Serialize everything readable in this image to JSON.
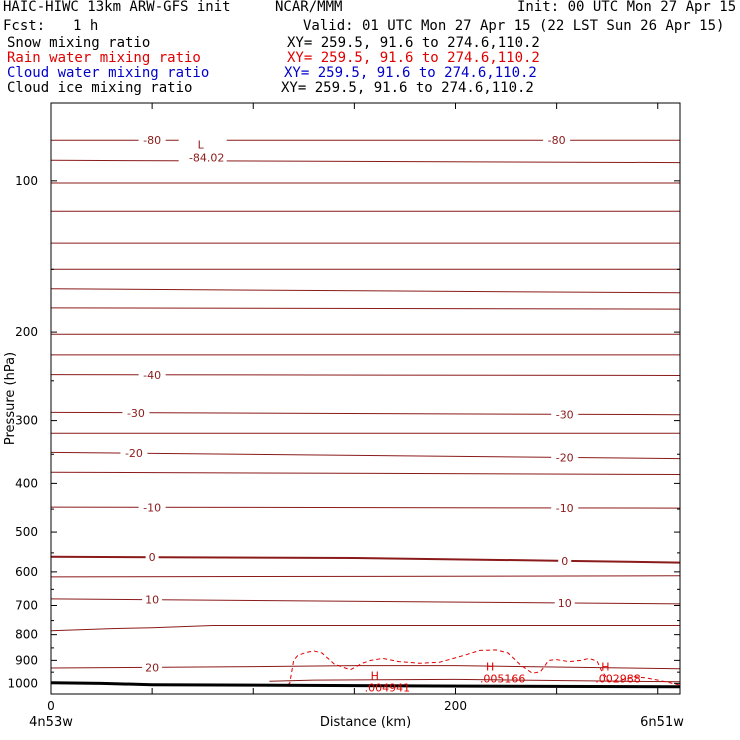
{
  "header": {
    "model": "HAIC-HIWC 13km ARW-GFS init",
    "center": "NCAR/MMM",
    "init": "Init: 00 UTC Mon 27 Apr 15",
    "fcst_label": "Fcst:",
    "fcst_value": "1 h",
    "valid": "Valid: 01 UTC Mon 27 Apr 15 (22 LST Sun 26 Apr 15)"
  },
  "fields": [
    {
      "name": "Snow mixing ratio",
      "xy": "XY= 259.5, 91.6 to 274.6,110.2",
      "color": "#000000"
    },
    {
      "name": "Rain water mixing ratio",
      "xy": "XY= 259.5, 91.6 to 274.6,110.2",
      "color": "#e00000"
    },
    {
      "name": "Cloud water mixing ratio",
      "xy": "XY= 259.5, 91.6 to 274.6,110.2",
      "color": "#0000cc"
    },
    {
      "name": "Cloud ice mixing ratio",
      "xy": "XY= 259.5, 91.6 to 274.6,110.2",
      "color": "#000000"
    }
  ],
  "chart_data": {
    "type": "line",
    "xlabel": "Distance (km)",
    "ylabel": "Pressure (hPa)",
    "xlim": [
      0,
      311
    ],
    "ylim": [
      70,
      1050
    ],
    "y_scale": "log",
    "x_ticks": [
      0,
      50,
      100,
      150,
      200,
      250,
      300
    ],
    "x_tick_labels": [
      {
        "x": 0,
        "label": "0"
      },
      {
        "x": 200,
        "label": "200"
      }
    ],
    "y_ticks": [
      100,
      200,
      300,
      400,
      500,
      600,
      700,
      800,
      900,
      1000
    ],
    "y_tick_labels": [
      "100",
      "200",
      "300",
      "400",
      "500",
      "600",
      "700",
      "800",
      "900",
      "1000"
    ],
    "endpoints": {
      "left": "4n53w",
      "right": "6n51w"
    },
    "colors": {
      "temperature": "#8b1a1a",
      "rain": "#e00000",
      "ground": "#000000",
      "frame": "#000000"
    },
    "temperature_contours": [
      {
        "label": "-80",
        "x": [
          0,
          311
        ],
        "p": [
          83,
          83
        ],
        "labels_at": [
          [
            50,
            -1
          ],
          [
            250,
            -1
          ]
        ]
      },
      {
        "label": "",
        "x": [
          0,
          311
        ],
        "p": [
          91,
          92
        ],
        "labels_at": []
      },
      {
        "label": "",
        "x": [
          0,
          311
        ],
        "p": [
          101,
          101
        ],
        "labels_at": []
      },
      {
        "label": "",
        "x": [
          0,
          311
        ],
        "p": [
          115,
          115
        ],
        "labels_at": []
      },
      {
        "label": "",
        "x": [
          0,
          311
        ],
        "p": [
          133,
          133
        ],
        "labels_at": []
      },
      {
        "label": "",
        "x": [
          0,
          311
        ],
        "p": [
          150,
          150
        ],
        "labels_at": []
      },
      {
        "label": "",
        "x": [
          0,
          311
        ],
        "p": [
          164,
          167
        ],
        "labels_at": []
      },
      {
        "label": "",
        "x": [
          0,
          311
        ],
        "p": [
          179,
          180
        ],
        "labels_at": []
      },
      {
        "label": "",
        "x": [
          0,
          311
        ],
        "p": [
          202,
          202
        ],
        "labels_at": []
      },
      {
        "label": "",
        "x": [
          0,
          311
        ],
        "p": [
          222,
          222
        ],
        "labels_at": []
      },
      {
        "label": "-40",
        "x": [
          0,
          311
        ],
        "p": [
          243,
          244
        ],
        "labels_at": [
          [
            50,
            -1
          ]
        ]
      },
      {
        "label": "-30",
        "x": [
          0,
          311
        ],
        "p": [
          289,
          292
        ],
        "labels_at": [
          [
            42,
            -1
          ],
          [
            254,
            -1
          ]
        ]
      },
      {
        "label": "",
        "x": [
          0,
          311
        ],
        "p": [
          318,
          318
        ],
        "labels_at": []
      },
      {
        "label": "-20",
        "x": [
          0,
          311
        ],
        "p": [
          347,
          357
        ],
        "labels_at": [
          [
            41,
            -1
          ],
          [
            254,
            -1
          ]
        ]
      },
      {
        "label": "",
        "x": [
          0,
          311
        ],
        "p": [
          380,
          384
        ],
        "labels_at": []
      },
      {
        "label": "-10",
        "x": [
          0,
          311
        ],
        "p": [
          446,
          448
        ],
        "labels_at": [
          [
            50,
            -1
          ],
          [
            254,
            -1
          ]
        ]
      },
      {
        "label": "0",
        "x": [
          0,
          150,
          250,
          311
        ],
        "p": [
          560,
          563,
          570,
          575
        ],
        "labels_at": [
          [
            50,
            -1
          ],
          [
            254,
            -1
          ]
        ],
        "bold": true
      },
      {
        "label": "",
        "x": [
          0,
          311
        ],
        "p": [
          614,
          611
        ],
        "labels_at": []
      },
      {
        "label": "10",
        "x": [
          0,
          311
        ],
        "p": [
          679,
          695
        ],
        "labels_at": [
          [
            50,
            -1
          ],
          [
            254,
            -1
          ]
        ]
      },
      {
        "label": "",
        "x": [
          0,
          30,
          50,
          80,
          150,
          311
        ],
        "p": [
          786,
          778,
          775,
          767,
          767,
          767
        ],
        "labels_at": []
      },
      {
        "label": "20",
        "x": [
          0,
          100,
          150,
          200,
          311
        ],
        "p": [
          932,
          926,
          922,
          922,
          935
        ],
        "labels_at": [
          [
            50,
            -1
          ]
        ]
      },
      {
        "label": "",
        "x": [
          108,
          130,
          200,
          311
        ],
        "p": [
          990,
          985,
          982,
          993
        ],
        "labels_at": []
      }
    ],
    "temperature_extremum": {
      "marker": "L",
      "value": "-84.02",
      "x": 75,
      "p": 89
    },
    "rain_contour": {
      "x": [
        117,
        118,
        120,
        122,
        126,
        130,
        134,
        140,
        148,
        154,
        158,
        164,
        172,
        182,
        192,
        204,
        212,
        220,
        226,
        232,
        238,
        242,
        244,
        246,
        250,
        256,
        262,
        266,
        270,
        272,
        276,
        282,
        288,
        294,
        300,
        305,
        311
      ],
      "p": [
        1005,
        1000,
        900,
        880,
        868,
        862,
        870,
        915,
        940,
        912,
        900,
        892,
        905,
        912,
        908,
        880,
        860,
        858,
        870,
        918,
        955,
        948,
        925,
        900,
        897,
        905,
        900,
        892,
        903,
        940,
        992,
        985,
        970,
        975,
        985,
        995,
        1008
      ]
    },
    "rain_maxima": [
      {
        "marker": "H",
        "value": ".004941",
        "x": 163,
        "p": 1000
      },
      {
        "marker": "H",
        "value": ".005166",
        "x": 220,
        "p": 960
      },
      {
        "marker": "H",
        "value": ".002988",
        "x": 277,
        "p": 960
      }
    ],
    "ground": {
      "x": [
        0,
        25,
        50,
        100,
        190,
        311
      ],
      "p": [
        997,
        1000,
        1006,
        1008,
        1012,
        1016
      ]
    }
  }
}
